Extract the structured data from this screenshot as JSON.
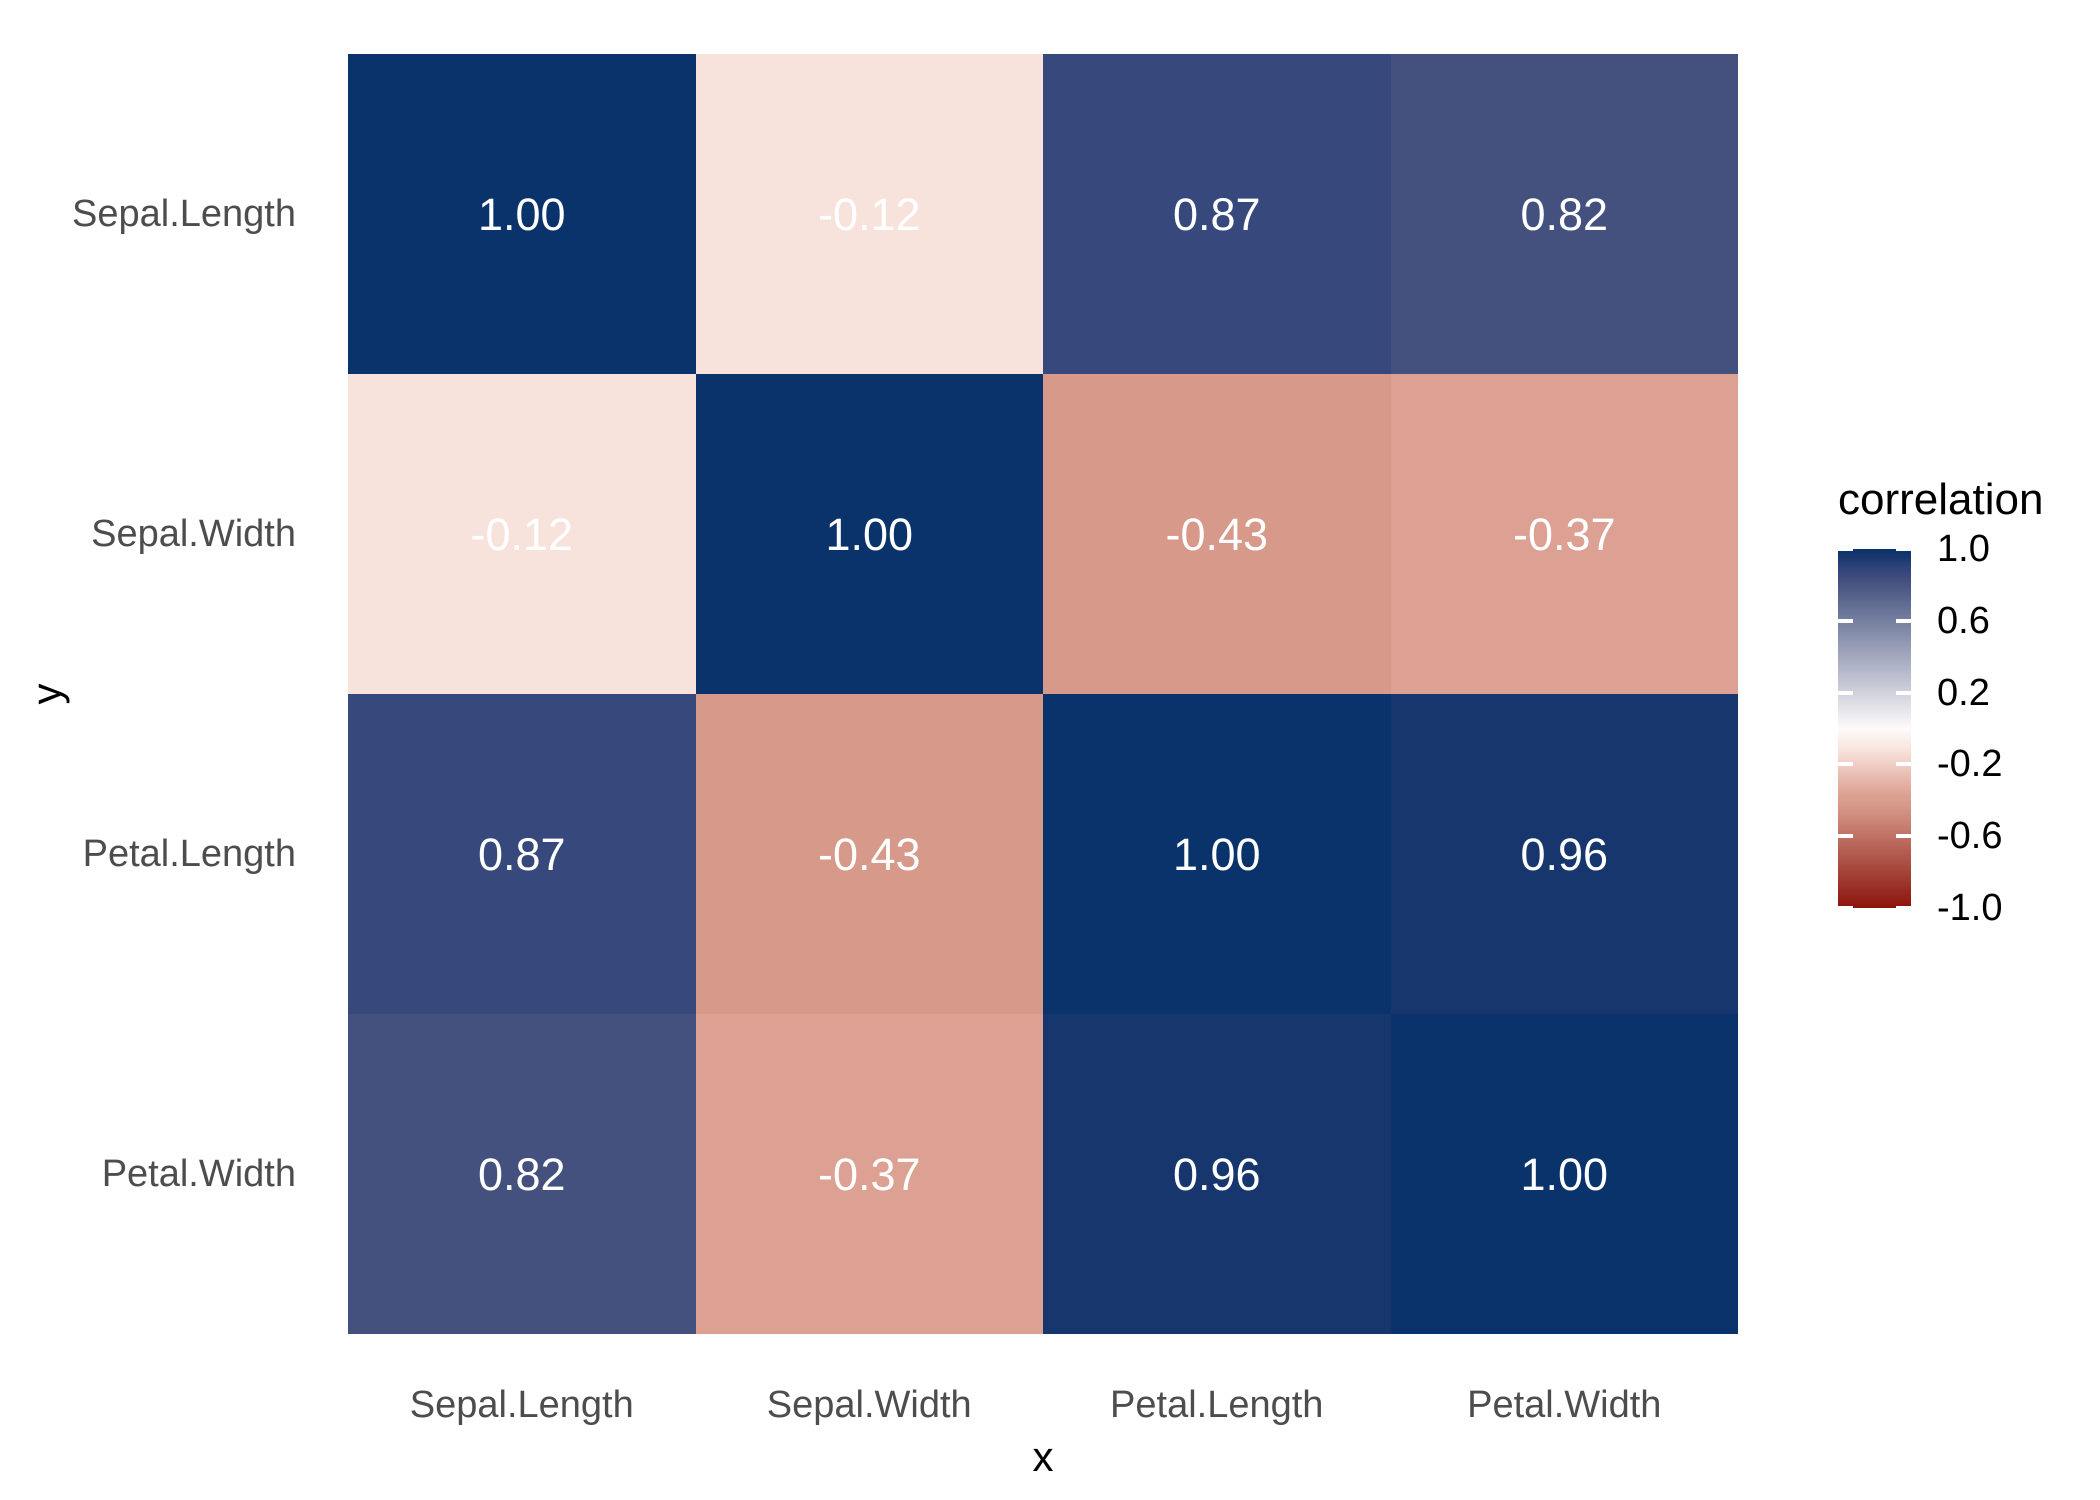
{
  "chart_data": {
    "type": "heatmap",
    "title": "",
    "xlabel": "x",
    "ylabel": "y",
    "x_categories": [
      "Sepal.Length",
      "Sepal.Width",
      "Petal.Length",
      "Petal.Width"
    ],
    "y_categories": [
      "Sepal.Length",
      "Sepal.Width",
      "Petal.Length",
      "Petal.Width"
    ],
    "values": [
      [
        1.0,
        -0.12,
        0.87,
        0.82
      ],
      [
        -0.12,
        1.0,
        -0.43,
        -0.37
      ],
      [
        0.87,
        -0.43,
        1.0,
        0.96
      ],
      [
        0.82,
        -0.37,
        0.96,
        1.0
      ]
    ],
    "matrix": [
      [
        {
          "label": "1.00",
          "color": "#0a326b"
        },
        {
          "label": "-0.12",
          "color": "#f8e3dc"
        },
        {
          "label": "0.87",
          "color": "#37487c"
        },
        {
          "label": "0.82",
          "color": "#44517f"
        }
      ],
      [
        {
          "label": "-0.12",
          "color": "#f8e3dc"
        },
        {
          "label": "1.00",
          "color": "#0a326b"
        },
        {
          "label": "-0.43",
          "color": "#d6998a"
        },
        {
          "label": "-0.37",
          "color": "#dda193"
        }
      ],
      [
        {
          "label": "0.87",
          "color": "#37487c"
        },
        {
          "label": "-0.43",
          "color": "#d6998a"
        },
        {
          "label": "1.00",
          "color": "#0a326b"
        },
        {
          "label": "0.96",
          "color": "#17366e"
        }
      ],
      [
        {
          "label": "0.82",
          "color": "#44517f"
        },
        {
          "label": "-0.37",
          "color": "#dda193"
        },
        {
          "label": "0.96",
          "color": "#17366e"
        },
        {
          "label": "1.00",
          "color": "#0a326b"
        }
      ]
    ],
    "value_text_color": "#ffffff",
    "axis_text_color": "#4d4d4d",
    "grid": false,
    "legend": {
      "title": "correlation",
      "position": "right",
      "range": [
        -1.0,
        1.0
      ],
      "ticks": [
        "1.0",
        "0.6",
        "0.2",
        "-0.2",
        "-0.6",
        "-1.0"
      ],
      "gradient_stops": [
        {
          "pos": 0,
          "color": "#0a326b"
        },
        {
          "pos": 2,
          "color": "#17366e"
        },
        {
          "pos": 6.5,
          "color": "#37487c"
        },
        {
          "pos": 9,
          "color": "#44517f"
        },
        {
          "pos": 50,
          "color": "#fdfbfa"
        },
        {
          "pos": 56,
          "color": "#f8e3dc"
        },
        {
          "pos": 68.5,
          "color": "#dda193"
        },
        {
          "pos": 71.5,
          "color": "#d6998a"
        },
        {
          "pos": 100,
          "color": "#8b140b"
        }
      ]
    }
  }
}
